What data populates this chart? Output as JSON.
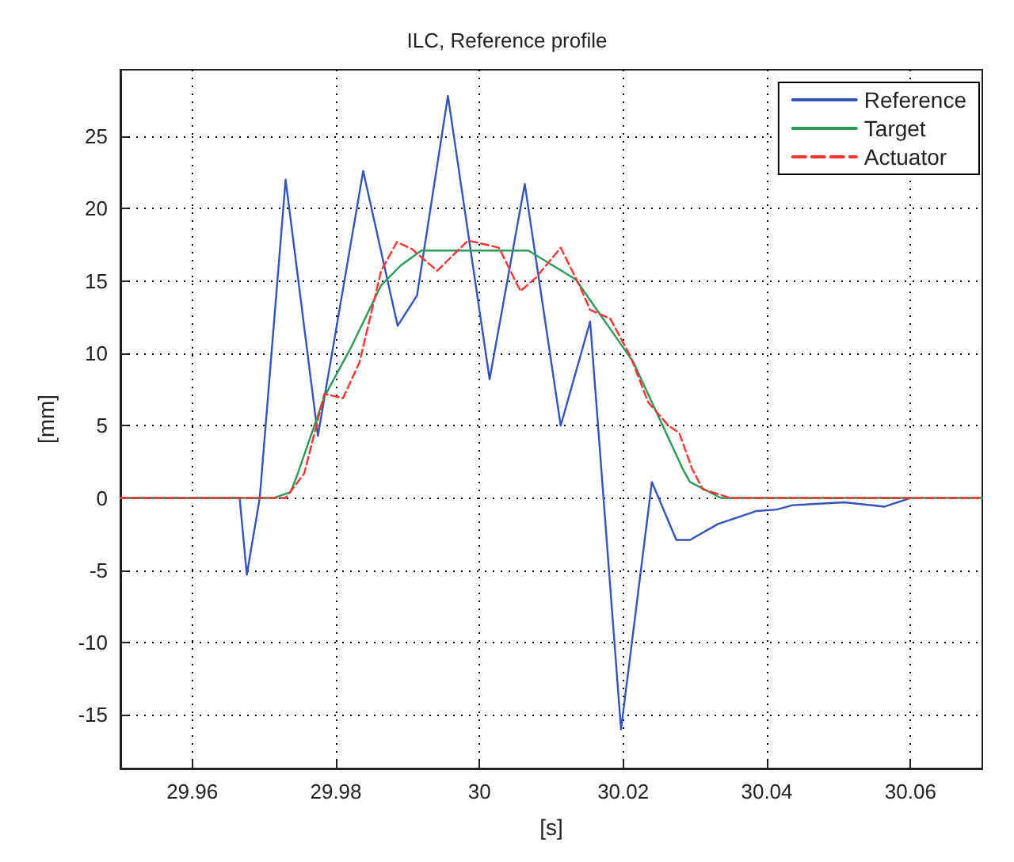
{
  "chart_data": {
    "type": "line",
    "title": "ILC, Reference profile",
    "xlabel": "[s]",
    "ylabel": "[mm]",
    "xlim": [
      29.95,
      30.07
    ],
    "ylim": [
      -18.7,
      29.6
    ],
    "xticks": [
      29.96,
      29.98,
      30,
      30.02,
      30.04,
      30.06
    ],
    "yticks": [
      -15,
      -10,
      -5,
      0,
      5,
      10,
      15,
      20,
      25
    ],
    "grid": true,
    "legend": "top right",
    "marker": "none",
    "series": [
      {
        "name": "Reference",
        "color": "#3355bb",
        "line_style": "solid",
        "x": [
          29.95,
          29.9666,
          29.9676,
          29.9694,
          29.973,
          29.9775,
          29.9838,
          29.9886,
          29.9913,
          29.9956,
          30.0014,
          30.0063,
          30.0113,
          30.0154,
          30.0197,
          30.024,
          30.0274,
          30.0293,
          30.0332,
          30.0386,
          30.0414,
          30.0436,
          30.0508,
          30.0564,
          30.06
        ],
        "values": [
          0,
          0,
          -5.3,
          0,
          22,
          4.3,
          22.6,
          11.9,
          14,
          27.8,
          8.2,
          21.7,
          5,
          12.2,
          -16,
          1.1,
          -2.9,
          -2.9,
          -1.8,
          -0.9,
          -0.8,
          -0.5,
          -0.3,
          -0.6,
          0
        ]
      },
      {
        "name": "Target",
        "color": "#2a9a5a",
        "line_style": "solid",
        "x": [
          29.95,
          29.9713,
          29.9737,
          29.9747,
          29.9784,
          29.982,
          29.9863,
          29.9891,
          29.9919,
          30.0068,
          30.0134,
          30.0214,
          30.0283,
          30.0293,
          30.0336,
          30.07
        ],
        "values": [
          0,
          0,
          0.4,
          1.7,
          7,
          10.3,
          14.7,
          16.1,
          17.1,
          17.1,
          15.1,
          9.4,
          2,
          1.1,
          0,
          0
        ]
      },
      {
        "name": "Actuator",
        "color": "#ff3333",
        "line_style": "dashed",
        "x": [
          29.95,
          29.973,
          29.9756,
          29.9784,
          29.981,
          29.9833,
          29.9863,
          29.9885,
          29.9906,
          29.9941,
          29.9984,
          30.0027,
          30.0057,
          30.0078,
          30.0113,
          30.0139,
          30.0154,
          30.0182,
          30.021,
          30.0235,
          30.0263,
          30.0278,
          30.0296,
          30.0311,
          30.0349,
          30.07
        ],
        "values": [
          0,
          0,
          1.7,
          7.2,
          6.9,
          9.4,
          15.7,
          17.7,
          17.2,
          15.7,
          17.8,
          17.3,
          14.3,
          15.2,
          17.3,
          14.7,
          13,
          12.4,
          9.8,
          6.6,
          5,
          4.5,
          2,
          0.6,
          0,
          0
        ]
      }
    ]
  }
}
